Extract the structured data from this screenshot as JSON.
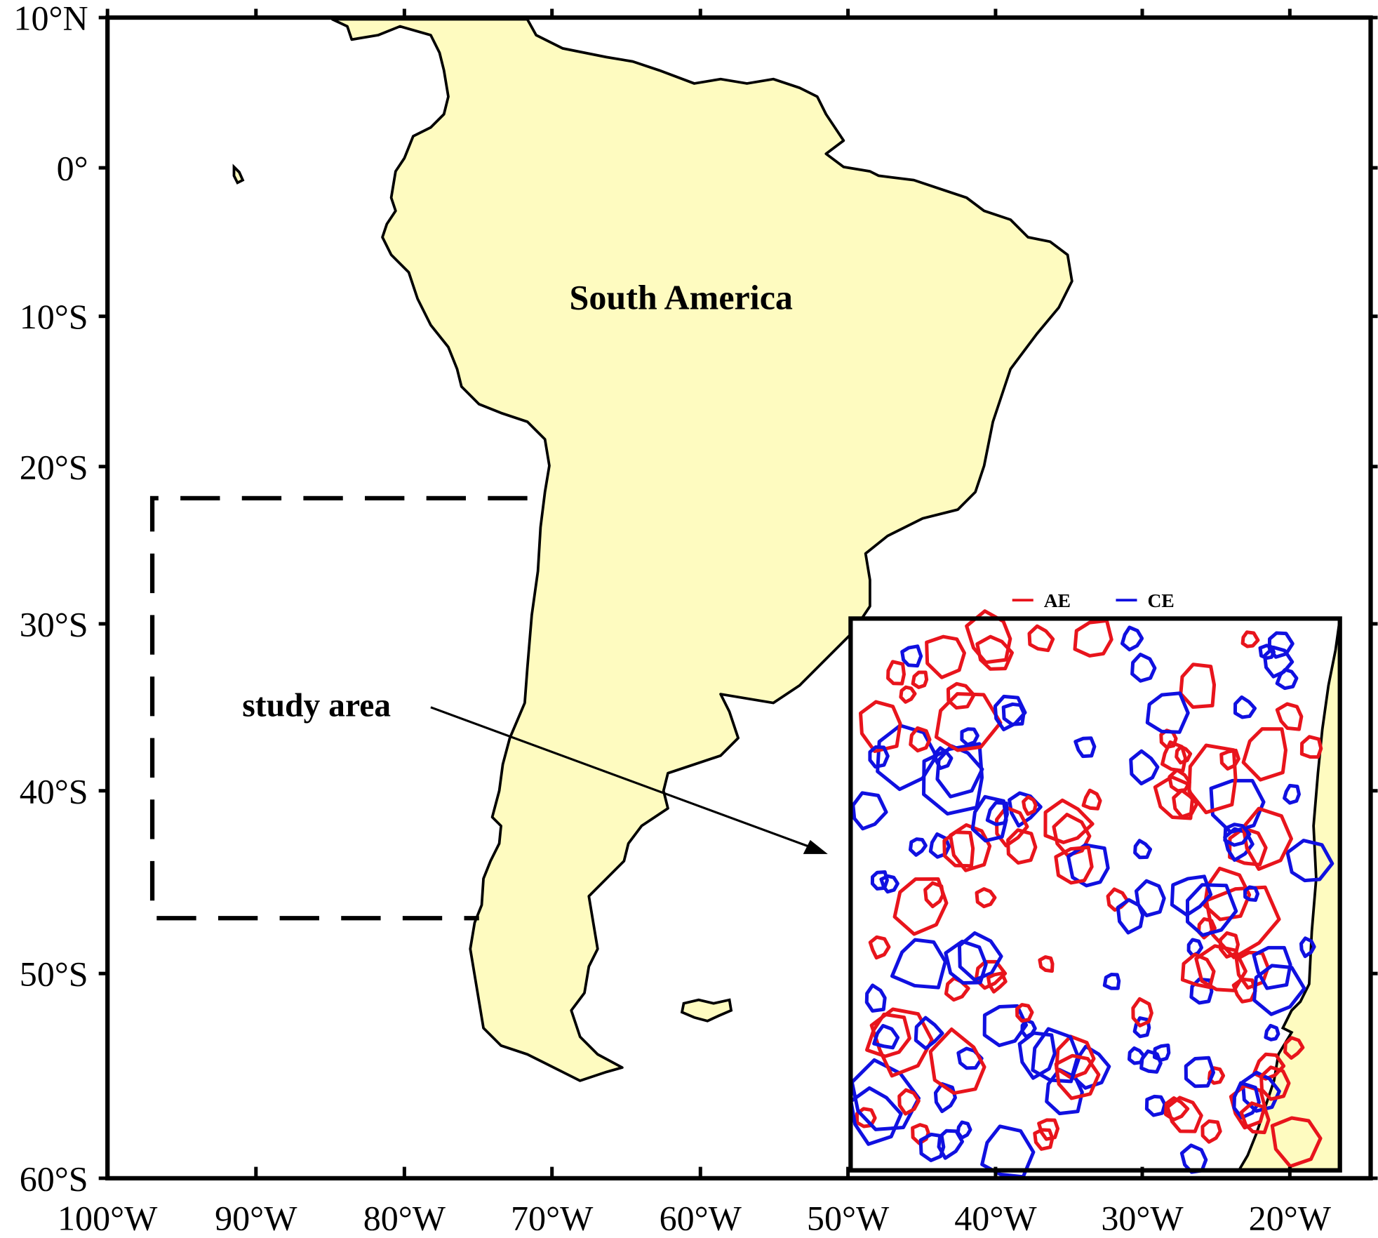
{
  "map": {
    "x_labels": [
      "100°W",
      "90°W",
      "80°W",
      "70°W",
      "60°W",
      "50°W",
      "40°W",
      "30°W",
      "20°W"
    ],
    "y_labels": [
      "10°N",
      "0°",
      "10°S",
      "20°S",
      "30°S",
      "40°S",
      "50°S",
      "60°S"
    ],
    "region_label": "South America",
    "study_area_label": "study area",
    "legend": [
      {
        "name": "AE",
        "color": "#e8141c"
      },
      {
        "name": "CE",
        "color": "#1010e0"
      }
    ]
  }
}
